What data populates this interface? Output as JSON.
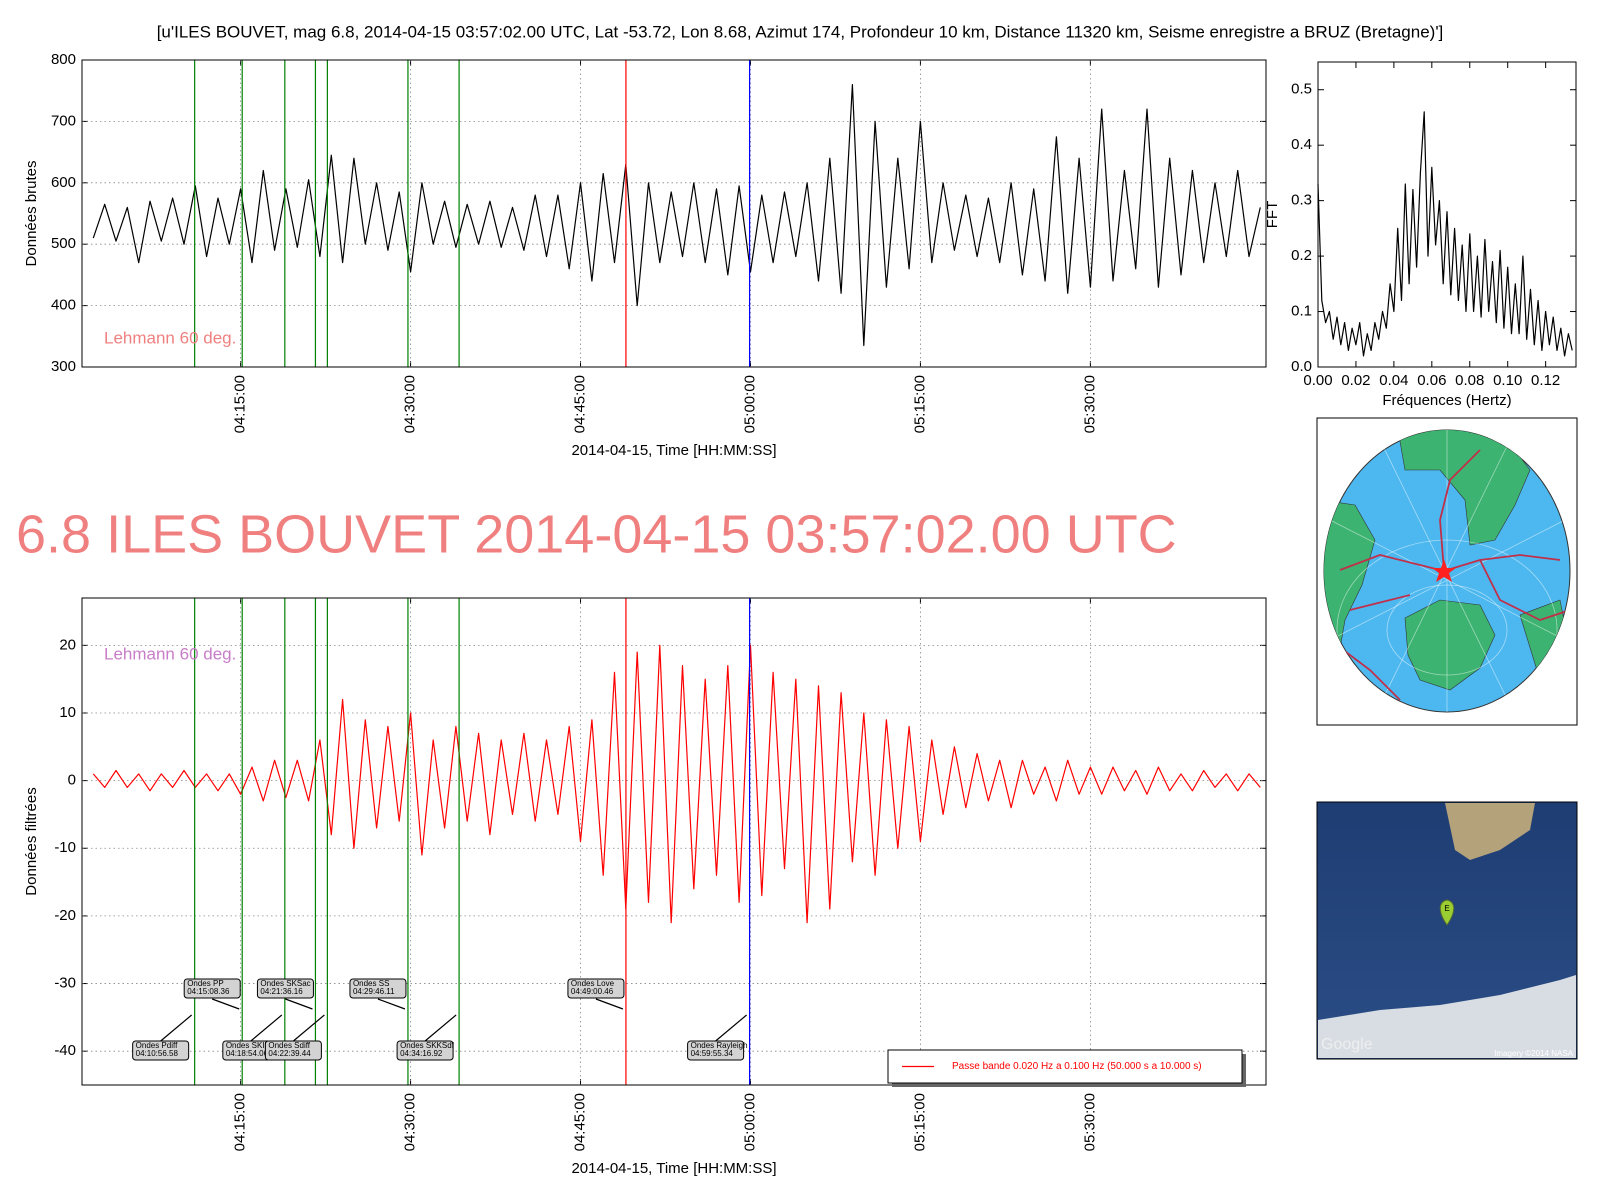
{
  "headline": "6.8 ILES BOUVET 2014-04-15 03:57:02.00 UTC",
  "maps": {
    "marker": "E",
    "google": "Google",
    "credit": "Imagery ©2014 NASA"
  },
  "chart_data": [
    {
      "type": "line",
      "title": "[u'ILES BOUVET, mag 6.8, 2014-04-15 03:57:02.00 UTC, Lat -53.72, Lon 8.68, Azimut 174, Profondeur 10 km, Distance 11320 km, Seisme enregistre a BRUZ (Bretagne)']",
      "xlabel": "2014-04-15, Time [HH:MM:SS]",
      "ylabel": "Données brutes",
      "note": "Lehmann 60 deg.",
      "note_color": "#f08080",
      "grid": true,
      "xlim": [
        "04:01:00",
        "05:45:30"
      ],
      "xticks": [
        "04:15:00",
        "04:30:00",
        "04:45:00",
        "05:00:00",
        "05:15:00",
        "05:30:00"
      ],
      "ylim": [
        300,
        800
      ],
      "yticks": [
        300,
        400,
        500,
        600,
        700,
        800
      ],
      "vlines": [
        {
          "time": "04:10:56.58",
          "color": "#008000"
        },
        {
          "time": "04:15:08.36",
          "color": "#008000"
        },
        {
          "time": "04:18:54.06",
          "color": "#008000"
        },
        {
          "time": "04:21:36.16",
          "color": "#008000"
        },
        {
          "time": "04:22:39.44",
          "color": "#008000"
        },
        {
          "time": "04:29:46.11",
          "color": "#008000"
        },
        {
          "time": "04:34:16.92",
          "color": "#008000"
        },
        {
          "time": "04:49:00.46",
          "color": "#ff0000"
        },
        {
          "time": "04:59:55.34",
          "color": "#0000ff"
        }
      ],
      "x": [
        "04:02:00",
        "04:03:00",
        "04:04:00",
        "04:05:00",
        "04:06:00",
        "04:07:00",
        "04:08:00",
        "04:09:00",
        "04:10:00",
        "04:11:00",
        "04:12:00",
        "04:13:00",
        "04:14:00",
        "04:15:00",
        "04:16:00",
        "04:17:00",
        "04:18:00",
        "04:19:00",
        "04:20:00",
        "04:21:00",
        "04:22:00",
        "04:23:00",
        "04:24:00",
        "04:25:00",
        "04:26:00",
        "04:27:00",
        "04:28:00",
        "04:29:00",
        "04:30:00",
        "04:31:00",
        "04:32:00",
        "04:33:00",
        "04:34:00",
        "04:35:00",
        "04:36:00",
        "04:37:00",
        "04:38:00",
        "04:39:00",
        "04:40:00",
        "04:41:00",
        "04:42:00",
        "04:43:00",
        "04:44:00",
        "04:45:00",
        "04:46:00",
        "04:47:00",
        "04:48:00",
        "04:49:00",
        "04:50:00",
        "04:51:00",
        "04:52:00",
        "04:53:00",
        "04:54:00",
        "04:55:00",
        "04:56:00",
        "04:57:00",
        "04:58:00",
        "04:59:00",
        "05:00:00",
        "05:01:00",
        "05:02:00",
        "05:03:00",
        "05:04:00",
        "05:05:00",
        "05:06:00",
        "05:07:00",
        "05:08:00",
        "05:09:00",
        "05:10:00",
        "05:11:00",
        "05:12:00",
        "05:13:00",
        "05:14:00",
        "05:15:00",
        "05:16:00",
        "05:17:00",
        "05:18:00",
        "05:19:00",
        "05:20:00",
        "05:21:00",
        "05:22:00",
        "05:23:00",
        "05:24:00",
        "05:25:00",
        "05:26:00",
        "05:27:00",
        "05:28:00",
        "05:29:00",
        "05:30:00",
        "05:31:00",
        "05:32:00",
        "05:33:00",
        "05:34:00",
        "05:35:00",
        "05:36:00",
        "05:37:00",
        "05:38:00",
        "05:39:00",
        "05:40:00",
        "05:41:00",
        "05:42:00",
        "05:43:00",
        "05:44:00",
        "05:45:00"
      ],
      "series": [
        {
          "color": "#000000",
          "values": [
            510,
            565,
            505,
            560,
            470,
            570,
            505,
            575,
            500,
            595,
            480,
            575,
            500,
            590,
            470,
            620,
            490,
            590,
            495,
            605,
            480,
            645,
            470,
            640,
            500,
            600,
            490,
            585,
            455,
            600,
            500,
            570,
            495,
            565,
            500,
            570,
            495,
            560,
            490,
            580,
            480,
            580,
            460,
            600,
            440,
            615,
            470,
            630,
            400,
            600,
            470,
            585,
            480,
            600,
            470,
            590,
            450,
            595,
            455,
            580,
            470,
            585,
            480,
            600,
            440,
            640,
            420,
            760,
            335,
            700,
            430,
            640,
            460,
            700,
            470,
            600,
            490,
            580,
            480,
            575,
            470,
            600,
            450,
            590,
            440,
            675,
            420,
            640,
            430,
            720,
            440,
            620,
            460,
            720,
            430,
            640,
            450,
            620,
            470,
            600,
            480,
            620,
            480,
            560
          ]
        }
      ]
    },
    {
      "type": "line",
      "xlabel": "2014-04-15, Time [HH:MM:SS]",
      "ylabel": "Données filtrées",
      "note": "Lehmann 60 deg.",
      "note_color": "#c87dc8",
      "grid": true,
      "legend": "lower right",
      "xlim": [
        "04:01:00",
        "05:45:30"
      ],
      "xticks": [
        "04:15:00",
        "04:30:00",
        "04:45:00",
        "05:00:00",
        "05:15:00",
        "05:30:00"
      ],
      "ylim": [
        -45,
        27
      ],
      "yticks": [
        -40,
        -30,
        -20,
        -10,
        0,
        10,
        20
      ],
      "annotations": [
        {
          "label": "Ondes Pdiff",
          "time": "04:10:56.58",
          "color": "#008000"
        },
        {
          "label": "Ondes PP",
          "time": "04:15:08.36",
          "color": "#008000"
        },
        {
          "label": "Ondes SKIKP",
          "time": "04:18:54.06",
          "color": "#008000"
        },
        {
          "label": "Ondes SKSac",
          "time": "04:21:36.16",
          "color": "#008000"
        },
        {
          "label": "Ondes Sdiff",
          "time": "04:22:39.44",
          "color": "#008000"
        },
        {
          "label": "Ondes SS",
          "time": "04:29:46.11",
          "color": "#008000"
        },
        {
          "label": "Ondes SKKSdf",
          "time": "04:34:16.92",
          "color": "#008000"
        },
        {
          "label": "Ondes Love",
          "time": "04:49:00.46",
          "color": "#ff0000"
        },
        {
          "label": "Ondes Rayleigh",
          "time": "04:59:55.34",
          "color": "#0000ff"
        }
      ],
      "x": [
        "04:02:00",
        "04:03:00",
        "04:04:00",
        "04:05:00",
        "04:06:00",
        "04:07:00",
        "04:08:00",
        "04:09:00",
        "04:10:00",
        "04:11:00",
        "04:12:00",
        "04:13:00",
        "04:14:00",
        "04:15:00",
        "04:16:00",
        "04:17:00",
        "04:18:00",
        "04:19:00",
        "04:20:00",
        "04:21:00",
        "04:22:00",
        "04:23:00",
        "04:24:00",
        "04:25:00",
        "04:26:00",
        "04:27:00",
        "04:28:00",
        "04:29:00",
        "04:30:00",
        "04:31:00",
        "04:32:00",
        "04:33:00",
        "04:34:00",
        "04:35:00",
        "04:36:00",
        "04:37:00",
        "04:38:00",
        "04:39:00",
        "04:40:00",
        "04:41:00",
        "04:42:00",
        "04:43:00",
        "04:44:00",
        "04:45:00",
        "04:46:00",
        "04:47:00",
        "04:48:00",
        "04:49:00",
        "04:50:00",
        "04:51:00",
        "04:52:00",
        "04:53:00",
        "04:54:00",
        "04:55:00",
        "04:56:00",
        "04:57:00",
        "04:58:00",
        "04:59:00",
        "05:00:00",
        "05:01:00",
        "05:02:00",
        "05:03:00",
        "05:04:00",
        "05:05:00",
        "05:06:00",
        "05:07:00",
        "05:08:00",
        "05:09:00",
        "05:10:00",
        "05:11:00",
        "05:12:00",
        "05:13:00",
        "05:14:00",
        "05:15:00",
        "05:16:00",
        "05:17:00",
        "05:18:00",
        "05:19:00",
        "05:20:00",
        "05:21:00",
        "05:22:00",
        "05:23:00",
        "05:24:00",
        "05:25:00",
        "05:26:00",
        "05:27:00",
        "05:28:00",
        "05:29:00",
        "05:30:00",
        "05:31:00",
        "05:32:00",
        "05:33:00",
        "05:34:00",
        "05:35:00",
        "05:36:00",
        "05:37:00",
        "05:38:00",
        "05:39:00",
        "05:40:00",
        "05:41:00",
        "05:42:00",
        "05:43:00",
        "05:44:00",
        "05:45:00"
      ],
      "series": [
        {
          "name": "Passe bande 0.020 Hz a 0.100 Hz (50.000 s a 10.000 s)",
          "color": "#ff0000",
          "values": [
            1,
            -1,
            1.5,
            -1,
            1,
            -1.5,
            1,
            -1,
            1.5,
            -1,
            1,
            -1.5,
            1,
            -2,
            2,
            -3,
            3,
            -2.5,
            3,
            -3,
            6,
            -8,
            12,
            -10,
            9,
            -7,
            8,
            -6,
            10,
            -11,
            6,
            -7,
            8,
            -6,
            7,
            -8,
            6,
            -5,
            7,
            -6,
            6,
            -5,
            8,
            -9,
            9,
            -14,
            16,
            -19,
            19,
            -18,
            20,
            -21,
            17,
            -16,
            15,
            -14,
            17,
            -18,
            20,
            -17,
            16,
            -13,
            15,
            -21,
            14,
            -19,
            13,
            -12,
            10,
            -14,
            9,
            -10,
            8,
            -9,
            6,
            -5,
            5,
            -4,
            4,
            -3,
            3,
            -4,
            3,
            -2,
            2,
            -3,
            3,
            -2,
            2,
            -2,
            2,
            -1.5,
            1.5,
            -2,
            2,
            -1.5,
            1,
            -1.5,
            1.5,
            -1,
            1,
            -1.5,
            1,
            -1
          ]
        }
      ]
    },
    {
      "type": "line",
      "xlabel": "Fréquences (Hertz)",
      "ylabel": "FFT",
      "xlim": [
        0,
        0.136
      ],
      "ylim": [
        0,
        0.55
      ],
      "xticks": [
        {
          "value": 0,
          "label": "0.00"
        },
        {
          "value": 0.02,
          "label": "0.02"
        },
        {
          "value": 0.04,
          "label": "0.04"
        },
        {
          "value": 0.06,
          "label": "0.06"
        },
        {
          "value": 0.08,
          "label": "0.08"
        },
        {
          "value": 0.1,
          "label": "0.10"
        },
        {
          "value": 0.12,
          "label": "0.12"
        }
      ],
      "yticks": [
        {
          "value": 0,
          "label": "0.0"
        },
        0.1,
        0.2,
        0.3,
        0.4,
        0.5
      ],
      "x": [
        0,
        0.002,
        0.004,
        0.006,
        0.008,
        0.01,
        0.012,
        0.014,
        0.016,
        0.018,
        0.02,
        0.022,
        0.024,
        0.026,
        0.028,
        0.03,
        0.032,
        0.034,
        0.036,
        0.038,
        0.04,
        0.042,
        0.044,
        0.046,
        0.048,
        0.05,
        0.052,
        0.054,
        0.056,
        0.058,
        0.06,
        0.062,
        0.064,
        0.066,
        0.068,
        0.07,
        0.072,
        0.074,
        0.076,
        0.078,
        0.08,
        0.082,
        0.084,
        0.086,
        0.088,
        0.09,
        0.092,
        0.094,
        0.096,
        0.098,
        0.1,
        0.102,
        0.104,
        0.106,
        0.108,
        0.11,
        0.112,
        0.114,
        0.116,
        0.118,
        0.12,
        0.122,
        0.124,
        0.126,
        0.128,
        0.13,
        0.132,
        0.134
      ],
      "series": [
        {
          "color": "#000000",
          "values": [
            0.33,
            0.12,
            0.08,
            0.1,
            0.05,
            0.09,
            0.04,
            0.08,
            0.03,
            0.07,
            0.04,
            0.08,
            0.02,
            0.06,
            0.03,
            0.08,
            0.05,
            0.1,
            0.07,
            0.15,
            0.1,
            0.25,
            0.12,
            0.33,
            0.15,
            0.32,
            0.18,
            0.35,
            0.46,
            0.2,
            0.36,
            0.22,
            0.3,
            0.15,
            0.28,
            0.13,
            0.25,
            0.12,
            0.22,
            0.1,
            0.24,
            0.1,
            0.2,
            0.09,
            0.23,
            0.1,
            0.19,
            0.08,
            0.21,
            0.07,
            0.18,
            0.06,
            0.15,
            0.06,
            0.2,
            0.05,
            0.14,
            0.04,
            0.12,
            0.03,
            0.1,
            0.04,
            0.09,
            0.03,
            0.07,
            0.02,
            0.06,
            0.03
          ]
        }
      ]
    }
  ]
}
